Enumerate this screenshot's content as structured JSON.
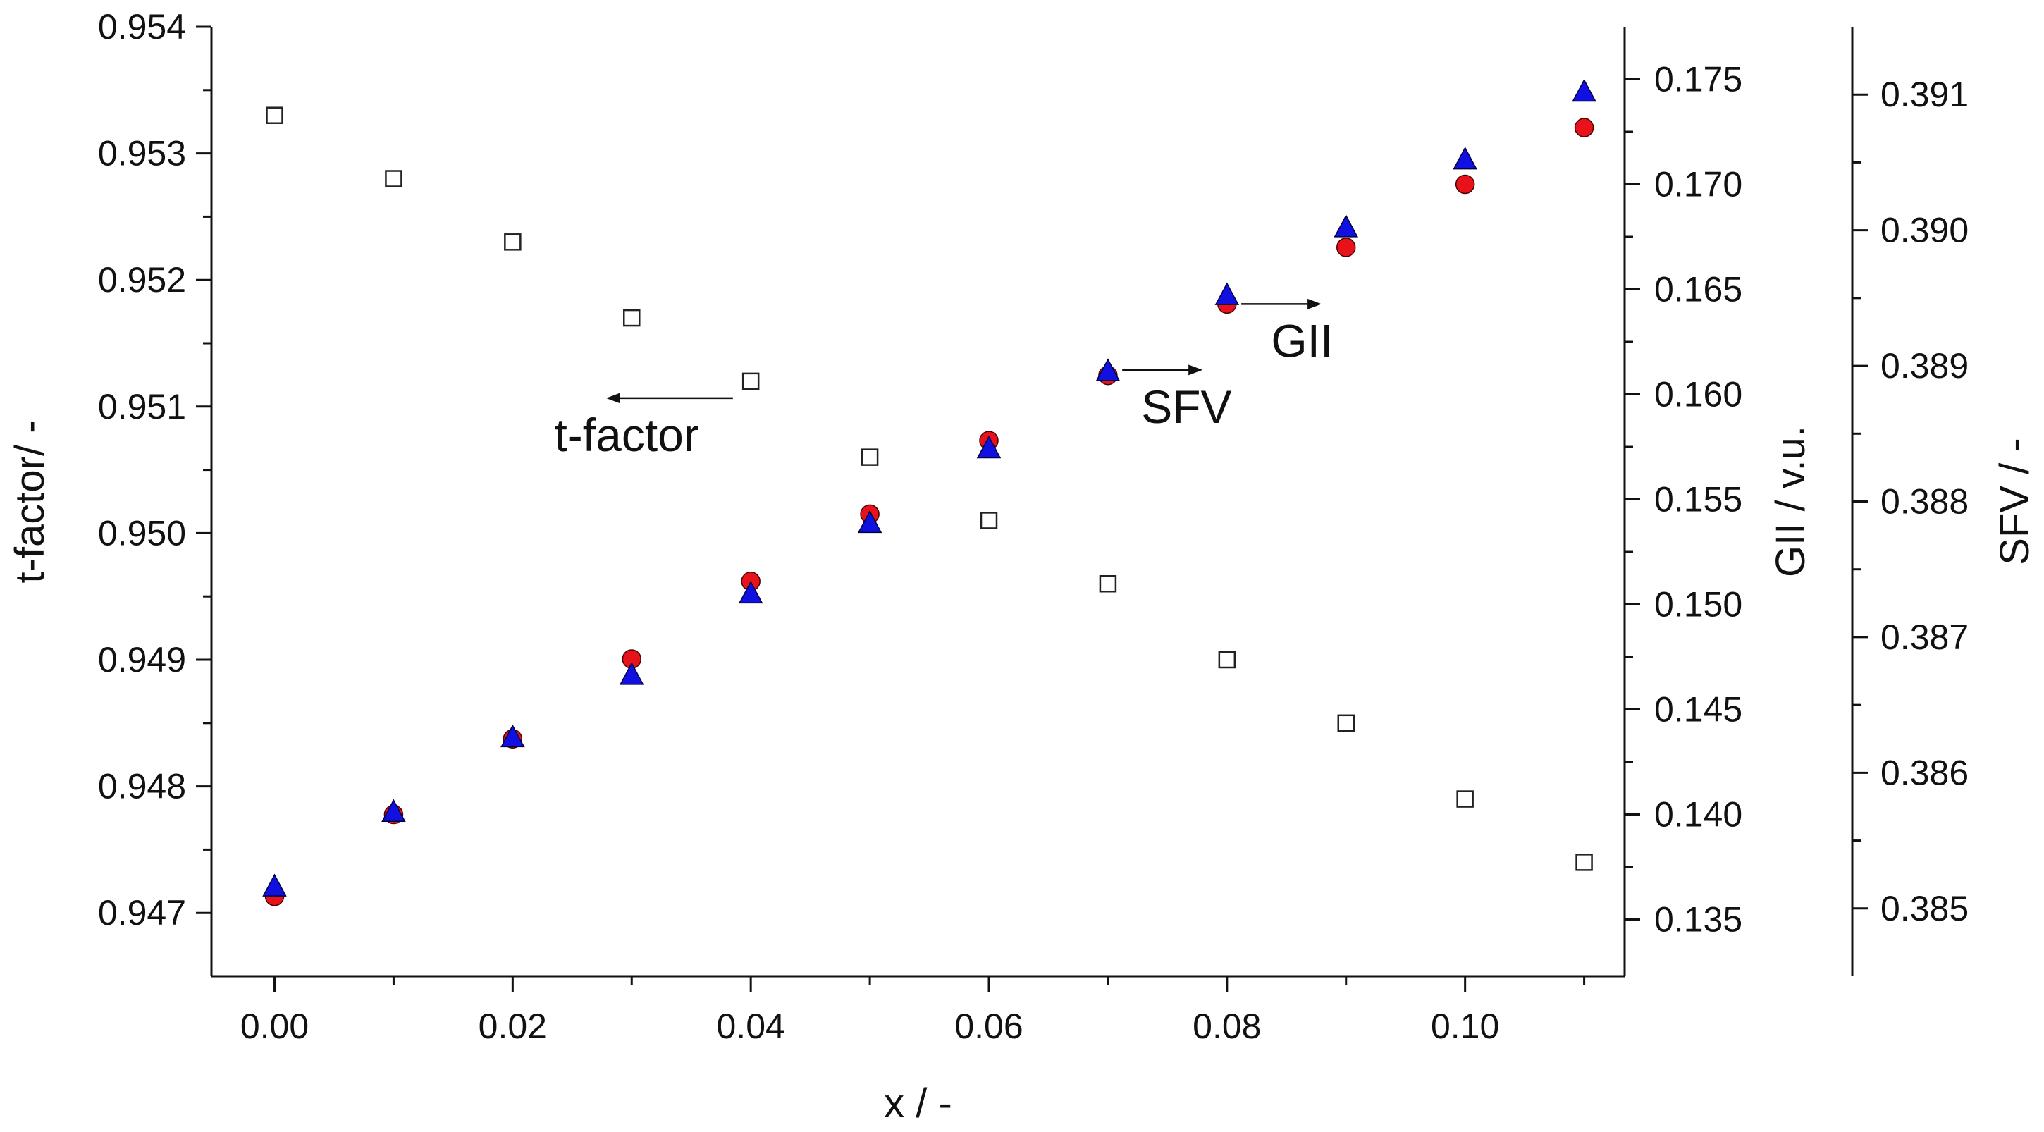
{
  "chart_data": {
    "type": "scatter",
    "title": "",
    "x": [
      0.0,
      0.01,
      0.02,
      0.03,
      0.04,
      0.05,
      0.06,
      0.07,
      0.08,
      0.09,
      0.1,
      0.11
    ],
    "xlabel": "x / -",
    "xlim": [
      -0.0053,
      0.1134
    ],
    "xticks": [
      "0.00",
      "0.02",
      "0.04",
      "0.06",
      "0.08",
      "0.10"
    ],
    "xtick_values": [
      0.0,
      0.02,
      0.04,
      0.06,
      0.08,
      0.1
    ],
    "axes": {
      "left": {
        "label": "t-factor/ -",
        "ylim": [
          0.9465,
          0.954
        ],
        "ticks": [
          "0.947",
          "0.948",
          "0.949",
          "0.950",
          "0.951",
          "0.952",
          "0.953",
          "0.954"
        ],
        "tick_values": [
          0.947,
          0.948,
          0.949,
          0.95,
          0.951,
          0.952,
          0.953,
          0.954
        ]
      },
      "right1": {
        "label": "GII / v.u.",
        "ylim": [
          0.1323,
          0.1775
        ],
        "ticks": [
          "0.135",
          "0.140",
          "0.145",
          "0.150",
          "0.155",
          "0.160",
          "0.165",
          "0.170",
          "0.175"
        ],
        "tick_values": [
          0.135,
          0.14,
          0.145,
          0.15,
          0.155,
          0.16,
          0.165,
          0.17,
          0.175
        ]
      },
      "right2": {
        "label": "SFV / -",
        "ylim": [
          0.3845,
          0.3915
        ],
        "ticks": [
          "0.385",
          "0.386",
          "0.387",
          "0.388",
          "0.389",
          "0.390",
          "0.391"
        ],
        "tick_values": [
          0.385,
          0.386,
          0.387,
          0.388,
          0.389,
          0.39,
          0.391
        ]
      }
    },
    "series": [
      {
        "name": "t-factor",
        "axis": "left",
        "marker": "square-open",
        "color": "#222222",
        "values": [
          0.9533,
          0.9528,
          0.9523,
          0.9517,
          0.9512,
          0.9506,
          0.9501,
          0.9496,
          0.949,
          0.9485,
          0.9479,
          0.9474
        ]
      },
      {
        "name": "GII",
        "axis": "right1",
        "marker": "circle",
        "color": "#e8121b",
        "values": [
          0.1361,
          0.14,
          0.1436,
          0.1474,
          0.1511,
          0.1543,
          0.1578,
          0.1609,
          0.1643,
          0.167,
          0.17,
          0.1727
        ]
      },
      {
        "name": "SFV",
        "axis": "right2",
        "marker": "triangle",
        "color": "#1010e0",
        "values": [
          0.38517,
          0.38572,
          0.38627,
          0.38673,
          0.38733,
          0.38785,
          0.3884,
          0.38897,
          0.38953,
          0.39003,
          0.39053,
          0.39103
        ]
      }
    ],
    "annotations": [
      {
        "text": "t-factor",
        "arrow": "left",
        "series": "t-factor"
      },
      {
        "text": "SFV",
        "arrow": "right",
        "series": "SFV"
      },
      {
        "text": "GII",
        "arrow": "right",
        "series": "GII"
      }
    ]
  }
}
